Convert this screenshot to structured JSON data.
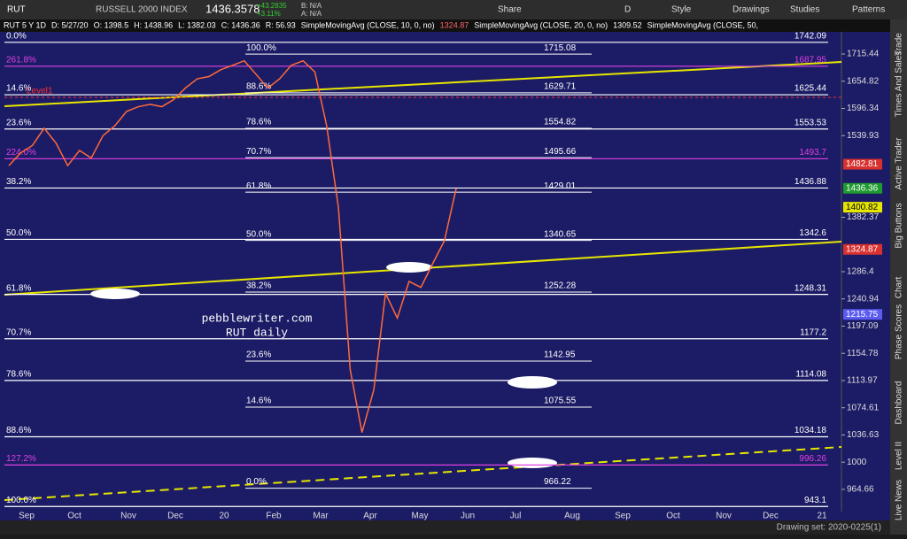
{
  "toolbar": {
    "symbol": "RUT",
    "name": "RUSSELL 2000 INDEX",
    "last": "1436.3578",
    "change": "+43.2835",
    "change_pct": "+3.11%",
    "bid": "B: N/A",
    "ask": "A: N/A",
    "buttons": [
      "Share",
      "D",
      "Style",
      "Drawings",
      "Studies",
      "Patterns"
    ]
  },
  "info_bar": [
    "RUT 5 Y 1D",
    "D: 5/27/20",
    "O: 1398.5",
    "H: 1438.96",
    "L: 1382.03",
    "C: 1436.36",
    "R: 56.93",
    "SimpleMovingAvg (CLOSE, 10, 0, no)",
    "1324.87",
    "SimpleMovingAvg (CLOSE, 20, 0, no)",
    "1309.52",
    "SimpleMovingAvg (CLOSE, 50,"
  ],
  "price_axis": {
    "ylim": [
      945.6,
      1764.3
    ],
    "log": true,
    "ticks": [
      1715.44,
      1654.82,
      1596.34,
      1539.93,
      1382.37,
      1286.4,
      1240.94,
      1197.09,
      1154.78,
      1113.97,
      1074.61,
      1036.63,
      1000,
      964.66
    ],
    "boxes": [
      {
        "value": 1482.81,
        "color": "#d93030"
      },
      {
        "value": 1436.36,
        "color": "#1f9a2f"
      },
      {
        "value": 1400.82,
        "color": "#e6e600"
      },
      {
        "value": 1324.87,
        "color": "#d93030"
      },
      {
        "value": 1215.75,
        "color": "#5b5bf0"
      }
    ]
  },
  "fib_middle": [
    {
      "pct": "100.0%",
      "value": 1715.08
    },
    {
      "pct": "88.6%",
      "value": 1629.71
    },
    {
      "pct": "78.6%",
      "value": 1554.82
    },
    {
      "pct": "70.7%",
      "value": 1495.66
    },
    {
      "pct": "61.8%",
      "value": 1429.01
    },
    {
      "pct": "50.0%",
      "value": 1340.65
    },
    {
      "pct": "38.2%",
      "value": 1252.28
    },
    {
      "pct": "23.6%",
      "value": 1142.95
    },
    {
      "pct": "14.6%",
      "value": 1075.55
    },
    {
      "pct": "0.0%",
      "value": 966.22
    }
  ],
  "fib_right": [
    {
      "pct": "0.0%",
      "value": 1742.09,
      "color": "#ffffff"
    },
    {
      "pct": "261.8%",
      "value": 1687.95,
      "color": "#e040e0"
    },
    {
      "pct": "14.6%",
      "value": 1625.44,
      "color": "#ffffff"
    },
    {
      "pct": "23.6%",
      "value": 1553.53,
      "color": "#ffffff"
    },
    {
      "pct": "224.0%",
      "value": 1493.7,
      "color": "#e040e0"
    },
    {
      "pct": "38.2%",
      "value": 1436.88,
      "color": "#ffffff"
    },
    {
      "pct": "50.0%",
      "value": 1342.6,
      "color": "#ffffff"
    },
    {
      "pct": "61.8%",
      "value": 1248.31,
      "color": "#ffffff"
    },
    {
      "pct": "70.7%",
      "value": 1177.2,
      "color": "#ffffff"
    },
    {
      "pct": "78.6%",
      "value": 1114.08,
      "color": "#ffffff"
    },
    {
      "pct": "88.6%",
      "value": 1034.18,
      "color": "#ffffff"
    },
    {
      "pct": "127.2%",
      "value": 996.26,
      "color": "#e040e0"
    },
    {
      "pct": "100.0%",
      "value": 943.1,
      "color": "#ffffff"
    }
  ],
  "price": {
    "closes": [
      1480,
      1505,
      1520,
      1555,
      1525,
      1480,
      1510,
      1495,
      1540,
      1560,
      1590,
      1600,
      1605,
      1600,
      1615,
      1640,
      1660,
      1665,
      1680,
      1690,
      1700,
      1670,
      1640,
      1660,
      1690,
      1700,
      1675,
      1560,
      1400,
      1130,
      1040,
      1100,
      1250,
      1210,
      1270,
      1260,
      1300,
      1340,
      1436
    ],
    "color": "#ff6a3a"
  },
  "x_axis": [
    "Sep",
    "Oct",
    "Nov",
    "Dec",
    "20",
    "Feb",
    "Mar",
    "Apr",
    "May",
    "Jun",
    "Jul",
    "Aug",
    "Sep",
    "Oct",
    "Nov",
    "Dec",
    "21"
  ],
  "annotations": {
    "site": "pebblewriter.com",
    "subtitle": "RUT daily",
    "level": "Level1"
  },
  "side_tabs": [
    "Trade",
    "Times And Sales",
    "Active Trader",
    "Big Buttons",
    "Chart",
    "Phase Scores",
    "Dashboard",
    "Level II",
    "Live News"
  ],
  "footer": "Drawing set: 2020-0225(1)"
}
